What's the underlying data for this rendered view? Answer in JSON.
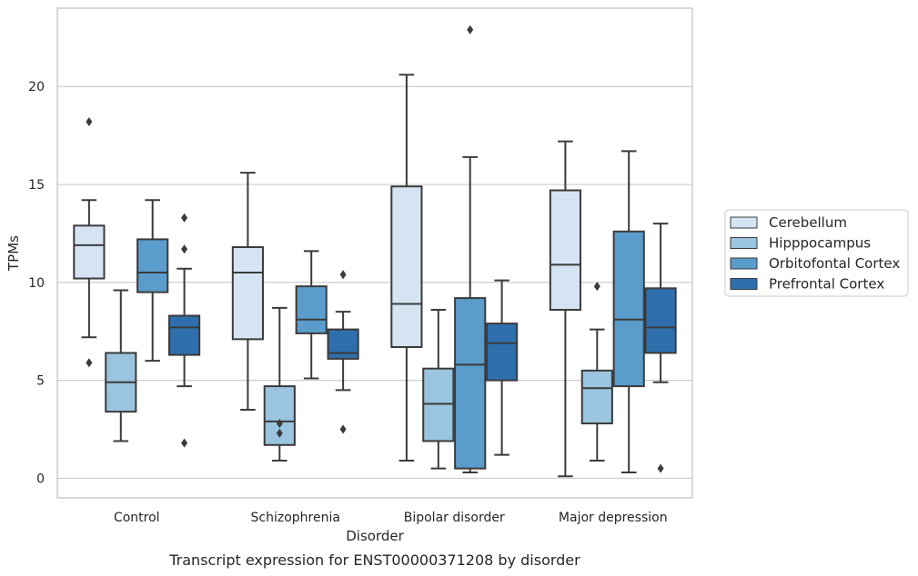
{
  "caption": "Transcript expression for ENST00000371208 by disorder",
  "chart_data": {
    "type": "boxplot",
    "xlabel": "Disorder",
    "ylabel": "TPMs",
    "ylim": [
      -1,
      24
    ],
    "yticks": [
      0,
      5,
      10,
      15,
      20
    ],
    "grid": "horizontal",
    "legend_placement": "right",
    "categories": [
      "Control",
      "Schizophrenia",
      "Bipolar disorder",
      "Major depression"
    ],
    "series": [
      {
        "name": "Cerebellum",
        "color": "#d5e4f3",
        "boxes": [
          {
            "whisker_low": 7.2,
            "q1": 10.2,
            "median": 11.9,
            "q3": 12.9,
            "whisker_high": 14.2,
            "outliers": [
              18.2,
              5.9
            ]
          },
          {
            "whisker_low": 3.5,
            "q1": 7.1,
            "median": 10.5,
            "q3": 11.8,
            "whisker_high": 15.6,
            "outliers": []
          },
          {
            "whisker_low": 0.9,
            "q1": 6.7,
            "median": 8.9,
            "q3": 14.9,
            "whisker_high": 20.6,
            "outliers": []
          },
          {
            "whisker_low": 0.1,
            "q1": 8.6,
            "median": 10.9,
            "q3": 14.7,
            "whisker_high": 17.2,
            "outliers": []
          }
        ]
      },
      {
        "name": "Hipppocampus",
        "color": "#9ac4df",
        "boxes": [
          {
            "whisker_low": 1.9,
            "q1": 3.4,
            "median": 4.9,
            "q3": 6.4,
            "whisker_high": 9.6,
            "outliers": []
          },
          {
            "whisker_low": 0.9,
            "q1": 1.7,
            "median": 2.9,
            "q3": 4.7,
            "whisker_high": 8.7,
            "outliers": [
              2.8,
              2.3
            ]
          },
          {
            "whisker_low": 0.5,
            "q1": 1.9,
            "median": 3.8,
            "q3": 5.6,
            "whisker_high": 8.6,
            "outliers": []
          },
          {
            "whisker_low": 0.9,
            "q1": 2.8,
            "median": 4.6,
            "q3": 5.5,
            "whisker_high": 7.6,
            "outliers": [
              9.8
            ]
          }
        ]
      },
      {
        "name": "Orbitofontal Cortex",
        "color": "#5a9ccb",
        "boxes": [
          {
            "whisker_low": 6.0,
            "q1": 9.5,
            "median": 10.5,
            "q3": 12.2,
            "whisker_high": 14.2,
            "outliers": []
          },
          {
            "whisker_low": 5.1,
            "q1": 7.4,
            "median": 8.1,
            "q3": 9.8,
            "whisker_high": 11.6,
            "outliers": []
          },
          {
            "whisker_low": 0.3,
            "q1": 0.5,
            "median": 5.8,
            "q3": 9.2,
            "whisker_high": 16.4,
            "outliers": [
              22.9
            ]
          },
          {
            "whisker_low": 0.3,
            "q1": 4.7,
            "median": 8.1,
            "q3": 12.6,
            "whisker_high": 16.7,
            "outliers": []
          }
        ]
      },
      {
        "name": "Prefrontal Cortex",
        "color": "#2f6fad",
        "boxes": [
          {
            "whisker_low": 4.7,
            "q1": 6.3,
            "median": 7.7,
            "q3": 8.3,
            "whisker_high": 10.7,
            "outliers": [
              13.3,
              11.7,
              1.8
            ]
          },
          {
            "whisker_low": 4.5,
            "q1": 6.1,
            "median": 6.4,
            "q3": 7.6,
            "whisker_high": 8.5,
            "outliers": [
              10.4,
              2.5
            ]
          },
          {
            "whisker_low": 1.2,
            "q1": 5.0,
            "median": 6.9,
            "q3": 7.9,
            "whisker_high": 10.1,
            "outliers": []
          },
          {
            "whisker_low": 4.9,
            "q1": 6.4,
            "median": 7.7,
            "q3": 9.7,
            "whisker_high": 13.0,
            "outliers": [
              0.5
            ]
          }
        ]
      }
    ]
  }
}
